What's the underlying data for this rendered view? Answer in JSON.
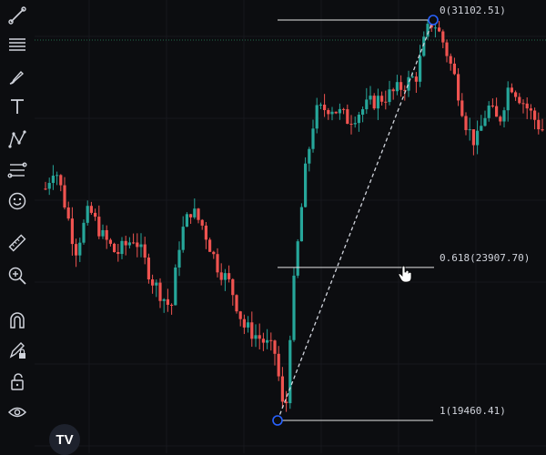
{
  "toolbar": {
    "tools": [
      {
        "name": "trend-line-icon"
      },
      {
        "name": "horizontal-lines-icon"
      },
      {
        "name": "brush-icon"
      },
      {
        "name": "text-icon"
      },
      {
        "name": "pattern-icon"
      },
      {
        "name": "fib-tools-icon"
      },
      {
        "name": "emoji-icon"
      },
      {
        "name": "ruler-icon"
      },
      {
        "name": "zoom-icon"
      },
      {
        "name": "magnet-icon"
      },
      {
        "name": "lock-drawings-icon"
      },
      {
        "name": "unlock-icon"
      },
      {
        "name": "eye-icon"
      }
    ]
  },
  "fib": {
    "level_0": "0(31102.51)",
    "level_0618": "0.618(23907.70)",
    "level_1": "1(19460.41)",
    "price_0": 31102.51,
    "price_0618": 23907.7,
    "price_1": 19460.41
  },
  "logo": {
    "text": "TV"
  },
  "colors": {
    "background": "#0c0d10",
    "bull": "#26a69a",
    "bear": "#ef5350",
    "anchor": "#2962ff",
    "level_line": "#e6e6e6"
  }
}
